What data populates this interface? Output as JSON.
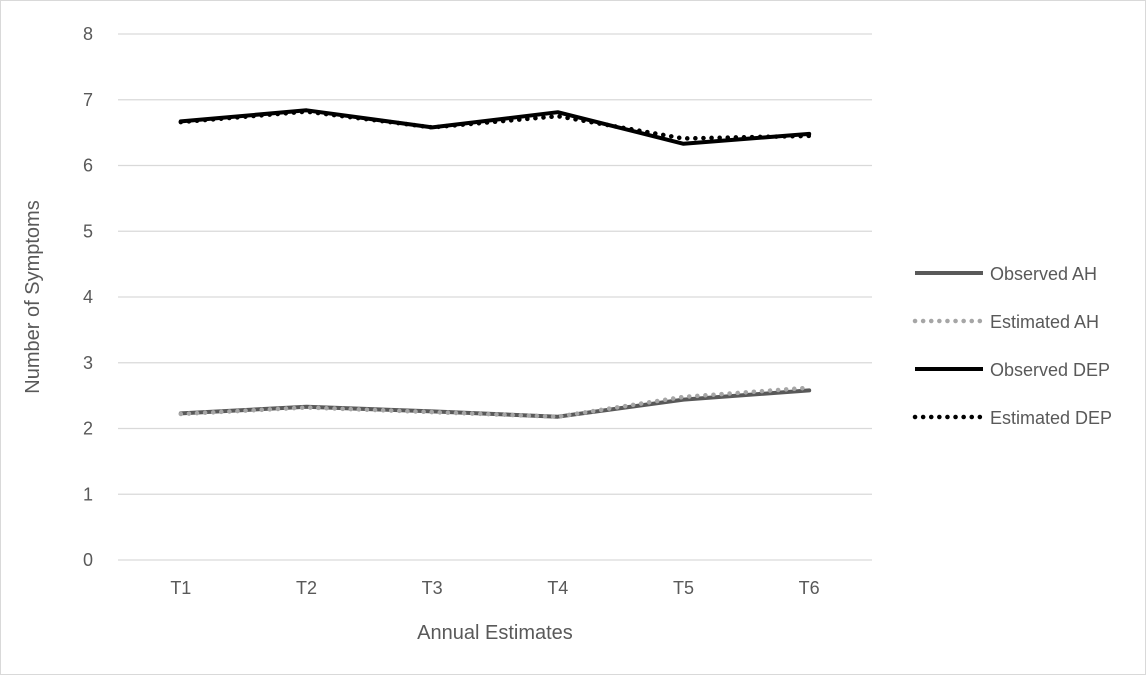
{
  "chart_data": {
    "type": "line",
    "title": "",
    "xlabel": "Annual Estimates",
    "ylabel": "Number of Symptoms",
    "categories": [
      "T1",
      "T2",
      "T3",
      "T4",
      "T5",
      "T6"
    ],
    "ylim": [
      0,
      8
    ],
    "yticks": [
      0,
      1,
      2,
      3,
      4,
      5,
      6,
      7,
      8
    ],
    "grid": true,
    "legend_position": "right",
    "series": [
      {
        "name": "Observed AH",
        "values": [
          2.23,
          2.33,
          2.26,
          2.18,
          2.44,
          2.58
        ],
        "color": "#595959",
        "style": "solid"
      },
      {
        "name": "Estimated AH",
        "values": [
          2.22,
          2.32,
          2.25,
          2.18,
          2.48,
          2.62
        ],
        "color": "#a6a6a6",
        "style": "dotted"
      },
      {
        "name": "Observed DEP",
        "values": [
          6.67,
          6.84,
          6.58,
          6.81,
          6.33,
          6.48
        ],
        "color": "#000000",
        "style": "solid"
      },
      {
        "name": "Estimated DEP",
        "values": [
          6.66,
          6.82,
          6.58,
          6.75,
          6.41,
          6.45
        ],
        "color": "#000000",
        "style": "dotted"
      }
    ]
  }
}
